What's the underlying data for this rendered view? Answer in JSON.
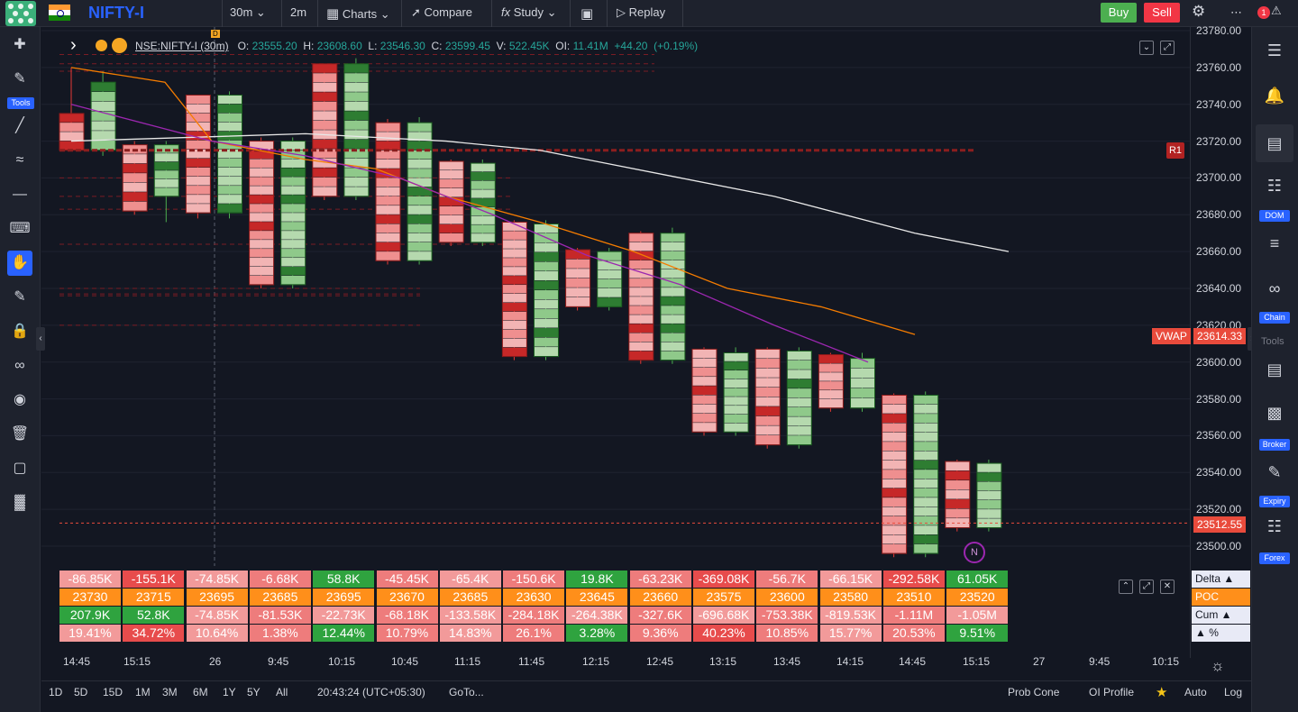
{
  "topbar": {
    "symbol": "NIFTY-I",
    "interval1": "30m",
    "interval2": "2m",
    "charts": "Charts",
    "compare": "Compare",
    "study": "Study",
    "replay": "Replay",
    "buy": "Buy",
    "sell": "Sell",
    "notif_badge": "1"
  },
  "legend": {
    "ticker": "NSE:NIFTY-I (30m)",
    "o_label": "O:",
    "o": "23555.20",
    "h_label": "H:",
    "h": "23608.60",
    "l_label": "L:",
    "l": "23546.30",
    "c_label": "C:",
    "c": "23599.45",
    "v_label": "V:",
    "v": "522.45K",
    "oi_label": "OI:",
    "oi": "11.41M",
    "chg": "+44.20",
    "chg_pct": "(+0.19%)"
  },
  "left_toolbar": {
    "tools_label": "Tools"
  },
  "right_toolbar": {
    "dom": "DOM",
    "chain": "Chain",
    "tools": "Tools",
    "broker": "Broker",
    "expiry": "Expiry",
    "forex": "Forex"
  },
  "price_axis": {
    "ticks": [
      "23780.00",
      "23760.00",
      "23740.00",
      "23720.00",
      "23700.00",
      "23680.00",
      "23660.00",
      "23640.00",
      "23620.00",
      "23600.00",
      "23580.00",
      "23560.00",
      "23540.00",
      "23520.00",
      "23500.00"
    ],
    "vwap_label": "VWAP",
    "vwap_value": "23614.33",
    "last_value": "23512.55",
    "r1_label": "R1",
    "n_label": "N",
    "d_label": "D"
  },
  "chart_data": {
    "type": "footprint",
    "ylim": [
      23495,
      23785
    ],
    "candles": [
      {
        "t": "14:45",
        "o": 23735,
        "h": 23760,
        "l": 23715,
        "c": 23715
      },
      {
        "t": "15:15",
        "o": 23715,
        "h": 23758,
        "l": 23712,
        "c": 23752
      },
      {
        "t": "",
        "o": 23718,
        "h": 23720,
        "l": 23680,
        "c": 23682
      },
      {
        "t": "",
        "o": 23690,
        "h": 23720,
        "l": 23676,
        "c": 23718
      },
      {
        "t": "26",
        "o": 23745,
        "h": 23745,
        "l": 23678,
        "c": 23681
      },
      {
        "t": "",
        "o": 23681,
        "h": 23747,
        "l": 23678,
        "c": 23745
      },
      {
        "t": "9:45",
        "o": 23720,
        "h": 23722,
        "l": 23640,
        "c": 23642
      },
      {
        "t": "",
        "o": 23642,
        "h": 23722,
        "l": 23640,
        "c": 23720
      },
      {
        "t": "10:15",
        "o": 23762,
        "h": 23762,
        "l": 23688,
        "c": 23690
      },
      {
        "t": "",
        "o": 23690,
        "h": 23765,
        "l": 23688,
        "c": 23762
      },
      {
        "t": "",
        "o": 23730,
        "h": 23732,
        "l": 23653,
        "c": 23655
      },
      {
        "t": "10:45",
        "o": 23655,
        "h": 23733,
        "l": 23653,
        "c": 23730
      },
      {
        "t": "",
        "o": 23709,
        "h": 23710,
        "l": 23663,
        "c": 23665
      },
      {
        "t": "11:15",
        "o": 23665,
        "h": 23710,
        "l": 23663,
        "c": 23708
      },
      {
        "t": "",
        "o": 23676,
        "h": 23677,
        "l": 23601,
        "c": 23603
      },
      {
        "t": "11:45",
        "o": 23603,
        "h": 23677,
        "l": 23601,
        "c": 23675
      },
      {
        "t": "",
        "o": 23661,
        "h": 23662,
        "l": 23628,
        "c": 23630
      },
      {
        "t": "12:15",
        "o": 23630,
        "h": 23662,
        "l": 23628,
        "c": 23660
      },
      {
        "t": "",
        "o": 23670,
        "h": 23671,
        "l": 23599,
        "c": 23601
      },
      {
        "t": "12:45",
        "o": 23601,
        "h": 23673,
        "l": 23599,
        "c": 23670
      },
      {
        "t": "",
        "o": 23607,
        "h": 23608,
        "l": 23560,
        "c": 23562
      },
      {
        "t": "13:15",
        "o": 23562,
        "h": 23608,
        "l": 23560,
        "c": 23605
      },
      {
        "t": "",
        "o": 23607,
        "h": 23608,
        "l": 23553,
        "c": 23555
      },
      {
        "t": "13:45",
        "o": 23555,
        "h": 23608,
        "l": 23553,
        "c": 23606
      },
      {
        "t": "",
        "o": 23604,
        "h": 23605,
        "l": 23573,
        "c": 23575
      },
      {
        "t": "14:15",
        "o": 23575,
        "h": 23605,
        "l": 23573,
        "c": 23602
      },
      {
        "t": "",
        "o": 23582,
        "h": 23583,
        "l": 23494,
        "c": 23496
      },
      {
        "t": "14:45",
        "o": 23496,
        "h": 23584,
        "l": 23494,
        "c": 23582
      },
      {
        "t": "",
        "o": 23546,
        "h": 23547,
        "l": 23508,
        "c": 23510
      },
      {
        "t": "15:15",
        "o": 23510,
        "h": 23547,
        "l": 23508,
        "c": 23545
      }
    ],
    "lines": [
      {
        "name": "white",
        "color": "#e8e8e8",
        "points": [
          [
            0,
            23720
          ],
          [
            10,
            23724
          ],
          [
            16,
            23720
          ],
          [
            20,
            23715
          ],
          [
            26,
            23700
          ],
          [
            30,
            23690
          ],
          [
            36,
            23670
          ],
          [
            40,
            23660
          ]
        ]
      },
      {
        "name": "orange",
        "color": "#f57c00",
        "points": [
          [
            0,
            23760
          ],
          [
            4,
            23752
          ],
          [
            6,
            23720
          ],
          [
            10,
            23710
          ],
          [
            13,
            23705
          ],
          [
            16,
            23690
          ],
          [
            20,
            23676
          ],
          [
            24,
            23660
          ],
          [
            28,
            23640
          ],
          [
            32,
            23630
          ],
          [
            36,
            23615
          ]
        ]
      },
      {
        "name": "purple",
        "color": "#9c27b0",
        "points": [
          [
            0,
            23740
          ],
          [
            6,
            23720
          ],
          [
            10,
            23712
          ],
          [
            14,
            23700
          ],
          [
            18,
            23680
          ],
          [
            22,
            23658
          ],
          [
            26,
            23642
          ],
          [
            30,
            23620
          ],
          [
            34,
            23600
          ]
        ]
      }
    ],
    "vwap": 23614.33,
    "last": 23512.55,
    "r1": 23715
  },
  "stats": {
    "rows": [
      {
        "label": "Delta ▲",
        "values": [
          "-86.85K",
          "-155.1K",
          "-74.85K",
          "-6.68K",
          "58.8K",
          "-45.45K",
          "-65.4K",
          "-150.6K",
          "19.8K",
          "-63.23K",
          "-369.08K",
          "-56.7K",
          "-66.15K",
          "-292.58K",
          "61.05K"
        ]
      },
      {
        "label": "POC",
        "values": [
          "23730",
          "23715",
          "23695",
          "23685",
          "23695",
          "23670",
          "23685",
          "23630",
          "23645",
          "23660",
          "23575",
          "23600",
          "23580",
          "23510",
          "23520"
        ]
      },
      {
        "label": "Cum ▲",
        "values": [
          "207.9K",
          "52.8K",
          "-74.85K",
          "-81.53K",
          "-22.73K",
          "-68.18K",
          "-133.58K",
          "-284.18K",
          "-264.38K",
          "-327.6K",
          "-696.68K",
          "-753.38K",
          "-819.53K",
          "-1.11M",
          "-1.05M"
        ]
      },
      {
        "label": "▲ %",
        "values": [
          "19.41%",
          "34.72%",
          "10.64%",
          "1.38%",
          "12.44%",
          "10.79%",
          "14.83%",
          "26.1%",
          "3.28%",
          "9.36%",
          "40.23%",
          "10.85%",
          "15.77%",
          "20.53%",
          "9.51%"
        ]
      }
    ]
  },
  "time_axis": [
    "14:45",
    "15:15",
    "26",
    "9:45",
    "10:15",
    "10:45",
    "11:15",
    "11:45",
    "12:15",
    "12:45",
    "13:15",
    "13:45",
    "14:15",
    "14:45",
    "15:15",
    "27",
    "9:45",
    "10:15"
  ],
  "bottombar": {
    "ranges": [
      "1D",
      "5D",
      "15D",
      "1M",
      "3M",
      "6M",
      "1Y",
      "5Y",
      "All"
    ],
    "clock": "20:43:24 (UTC+05:30)",
    "goto": "GoTo...",
    "prob_cone": "Prob Cone",
    "oi_profile": "OI Profile",
    "auto": "Auto",
    "log": "Log"
  }
}
